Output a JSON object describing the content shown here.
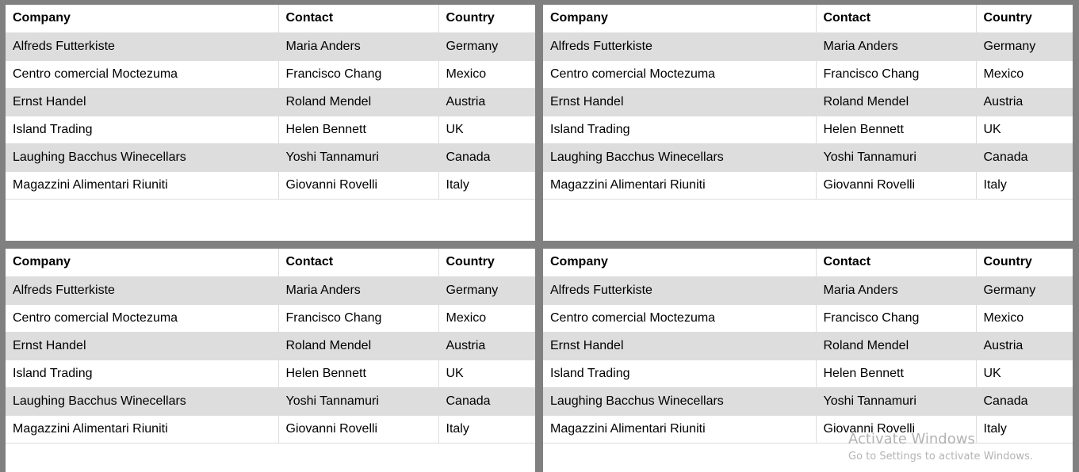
{
  "headers": [
    "Company",
    "Contact",
    "Country"
  ],
  "rows": [
    [
      "Alfreds Futterkiste",
      "Maria Anders",
      "Germany"
    ],
    [
      "Centro comercial Moctezuma",
      "Francisco Chang",
      "Mexico"
    ],
    [
      "Ernst Handel",
      "Roland Mendel",
      "Austria"
    ],
    [
      "Island Trading",
      "Helen Bennett",
      "UK"
    ],
    [
      "Laughing Bacchus Winecellars",
      "Yoshi Tannamuri",
      "Canada"
    ],
    [
      "Magazzini Alimentari Riuniti",
      "Giovanni Rovelli",
      "Italy"
    ]
  ],
  "watermark": {
    "title": "Activate Windows",
    "subtitle": "Go to Settings to activate Windows."
  }
}
